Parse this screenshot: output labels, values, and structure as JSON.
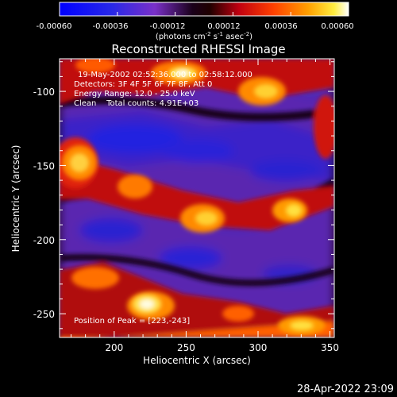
{
  "colorbar": {
    "ticks": [
      "-0.00060",
      "-0.00036",
      "-0.00012",
      "0.00012",
      "0.00036",
      "0.00060"
    ],
    "units_prefix": "(photons cm",
    "units_exp1": "-2",
    "units_mid": " s",
    "units_exp2": "-1",
    "units_mid2": " asec",
    "units_exp3": "-2",
    "units_suffix": ")"
  },
  "plot": {
    "title": "Reconstructed RHESSI Image",
    "xlabel": "Heliocentric X (arcsec)",
    "ylabel": "Heliocentric Y (arcsec)",
    "xticks": [
      "200",
      "250",
      "300",
      "350"
    ],
    "yticks": [
      "-100",
      "-150",
      "-200",
      "-250"
    ],
    "info": [
      "19-May-2002 02:52:36.000 to 02:58:12.000",
      "Detectors: 3F 4F 5F 6F 7F 8F, Att 0",
      "Energy Range: 12.0 - 25.0 keV",
      "Clean    Total counts: 4.91E+03"
    ],
    "peak": "Position of Peak = [223,-243]"
  },
  "footer": {
    "timestamp": "28-Apr-2022 23:09"
  },
  "colors": {
    "deep": "#0a0040",
    "blue": "#2020e0",
    "purple": "#6a30c0",
    "red": "#d01010",
    "orange": "#ff7a00",
    "yellow": "#ffe040",
    "white": "#fffce0"
  }
}
